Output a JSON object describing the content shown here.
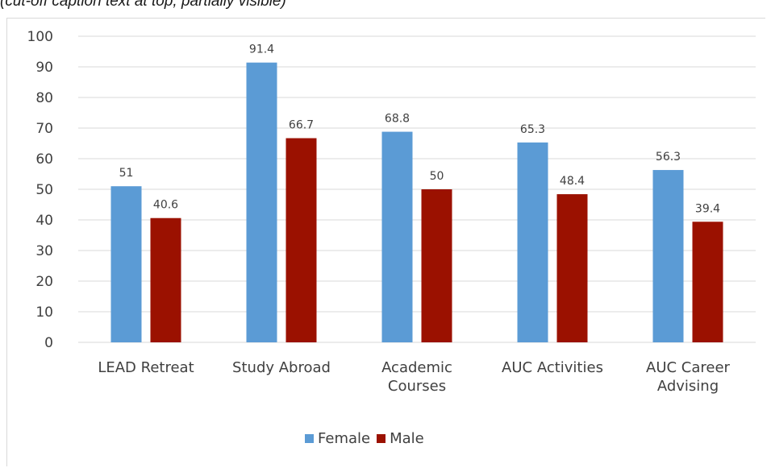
{
  "caption": "(cut-off caption text at top, partially visible)",
  "chart_data": {
    "type": "bar",
    "title": "",
    "xlabel": "",
    "ylabel": "",
    "ylim": [
      0,
      100
    ],
    "yticks": [
      0,
      10,
      20,
      30,
      40,
      50,
      60,
      70,
      80,
      90,
      100
    ],
    "grid": true,
    "legend_position": "bottom",
    "categories": [
      [
        "LEAD Retreat"
      ],
      [
        "Study Abroad"
      ],
      [
        "Academic",
        "Courses"
      ],
      [
        "AUC Activities"
      ],
      [
        "AUC Career",
        "Advising"
      ]
    ],
    "series": [
      {
        "name": "Female",
        "color": "#5b9bd5",
        "values": [
          51,
          91.4,
          68.8,
          65.3,
          56.3
        ],
        "labels": [
          "51",
          "91.4",
          "68.8",
          "65.3",
          "56.3"
        ]
      },
      {
        "name": "Male",
        "color": "#9b1100",
        "values": [
          40.6,
          66.7,
          50,
          48.4,
          39.4
        ],
        "labels": [
          "40.6",
          "66.7",
          "50",
          "48.4",
          "39.4"
        ]
      }
    ]
  }
}
